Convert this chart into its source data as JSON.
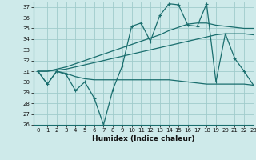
{
  "xlabel": "Humidex (Indice chaleur)",
  "bg_color": "#ceeaea",
  "grid_color": "#a0cccc",
  "line_color": "#1a6e6e",
  "xlim": [
    -0.5,
    23
  ],
  "ylim": [
    26,
    37.5
  ],
  "yticks": [
    26,
    27,
    28,
    29,
    30,
    31,
    32,
    33,
    34,
    35,
    36,
    37
  ],
  "xticks": [
    0,
    1,
    2,
    3,
    4,
    5,
    6,
    7,
    8,
    9,
    10,
    11,
    12,
    13,
    14,
    15,
    16,
    17,
    18,
    19,
    20,
    21,
    22,
    23
  ],
  "series": [
    {
      "x": [
        0,
        1,
        2,
        3,
        4,
        5,
        6,
        7,
        8,
        9,
        10,
        11,
        12,
        13,
        14,
        15,
        16,
        17,
        18,
        19,
        20,
        21,
        22,
        23
      ],
      "y": [
        31,
        29.8,
        31,
        30.8,
        30.5,
        30.3,
        30.2,
        30.2,
        30.2,
        30.2,
        30.2,
        30.2,
        30.2,
        30.2,
        30.2,
        30.1,
        30.0,
        29.9,
        29.8,
        29.8,
        29.8,
        29.8,
        29.8,
        29.7
      ],
      "marker": false,
      "lw": 0.9
    },
    {
      "x": [
        0,
        1,
        2,
        3,
        4,
        5,
        6,
        7,
        8,
        9,
        10,
        11,
        12,
        13,
        14,
        15,
        16,
        17,
        18,
        19,
        20,
        21,
        22,
        23
      ],
      "y": [
        31,
        31,
        31.1,
        31.2,
        31.4,
        31.6,
        31.8,
        32.0,
        32.2,
        32.4,
        32.6,
        32.8,
        33.0,
        33.2,
        33.4,
        33.6,
        33.8,
        34.0,
        34.2,
        34.4,
        34.5,
        34.5,
        34.5,
        34.4
      ],
      "marker": false,
      "lw": 0.9
    },
    {
      "x": [
        0,
        1,
        2,
        3,
        4,
        5,
        6,
        7,
        8,
        9,
        10,
        11,
        12,
        13,
        14,
        15,
        16,
        17,
        18,
        19,
        20,
        21,
        22,
        23
      ],
      "y": [
        31,
        31,
        31.2,
        31.4,
        31.7,
        32.0,
        32.3,
        32.6,
        32.9,
        33.2,
        33.5,
        33.8,
        34.1,
        34.4,
        34.8,
        35.1,
        35.4,
        35.5,
        35.5,
        35.3,
        35.2,
        35.1,
        35.0,
        35.0
      ],
      "marker": false,
      "lw": 0.9
    },
    {
      "x": [
        0,
        1,
        2,
        3,
        4,
        5,
        6,
        7,
        8,
        9,
        10,
        11,
        12,
        13,
        14,
        15,
        16,
        17,
        18,
        19,
        20,
        21,
        22,
        23
      ],
      "y": [
        31,
        29.8,
        31,
        30.7,
        29.2,
        30,
        28.5,
        26,
        29.3,
        31.5,
        35.2,
        35.5,
        33.8,
        36.2,
        37.3,
        37.2,
        35.3,
        35.2,
        37.3,
        30,
        34.5,
        32.2,
        31,
        29.7
      ],
      "marker": true,
      "lw": 0.9
    }
  ]
}
